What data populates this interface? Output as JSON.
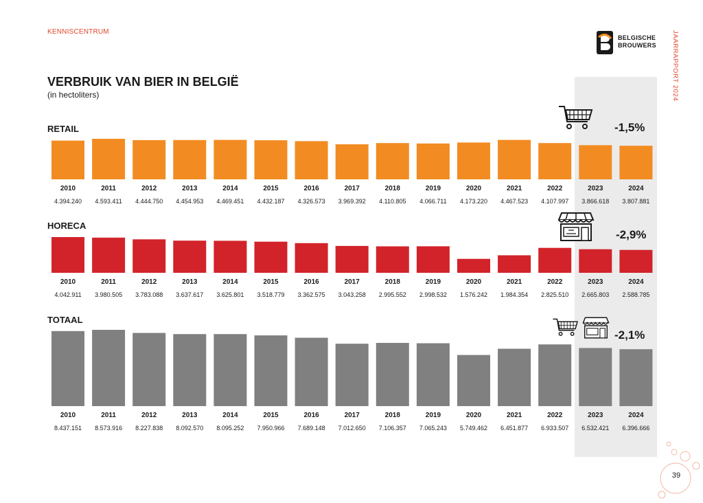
{
  "header": {
    "label": "KENNISCENTRUM",
    "side_label": "JAARRAPPORT 2024",
    "page_number": "39"
  },
  "logo": {
    "line1": "BELGISCHE",
    "line2": "BROUWERS",
    "icon": "brewer-b-logo"
  },
  "title": "VERBRUIK VAN BIER IN BELGIË",
  "subtitle": "(in hectoliters)",
  "colors": {
    "retail": "#f28c22",
    "horeca": "#d2232a",
    "totaal": "#808080",
    "highlight": "#ebebeb",
    "accent": "#e0472c"
  },
  "chart_data": [
    {
      "type": "bar",
      "title": "RETAIL",
      "change": "-1,5%",
      "icon": "shopping-cart-icon",
      "categories": [
        "2010",
        "2011",
        "2012",
        "2013",
        "2014",
        "2015",
        "2016",
        "2017",
        "2018",
        "2019",
        "2020",
        "2021",
        "2022",
        "2023",
        "2024"
      ],
      "value_labels": [
        "4.394.240",
        "4.593.411",
        "4.444.750",
        "4.454.953",
        "4.469.451",
        "4.432.187",
        "4.326.573",
        "3.969.392",
        "4.110.805",
        "4.066.711",
        "4.173.220",
        "4.467.523",
        "4.107.997",
        "3.866.618",
        "3.807.881"
      ],
      "values": [
        4394240,
        4593411,
        4444750,
        4454953,
        4469451,
        4432187,
        4326573,
        3969392,
        4110805,
        4066711,
        4173220,
        4467523,
        4107997,
        3866618,
        3807881
      ],
      "highlighted": [
        "2023",
        "2024"
      ]
    },
    {
      "type": "bar",
      "title": "HORECA",
      "change": "-2,9%",
      "icon": "storefront-icon",
      "categories": [
        "2010",
        "2011",
        "2012",
        "2013",
        "2014",
        "2015",
        "2016",
        "2017",
        "2018",
        "2019",
        "2020",
        "2021",
        "2022",
        "2023",
        "2024"
      ],
      "value_labels": [
        "4.042.911",
        "3.980.505",
        "3.783.088",
        "3.637.617",
        "3.625.801",
        "3.518.779",
        "3.362.575",
        "3.043.258",
        "2.995.552",
        "2.998.532",
        "1.576.242",
        "1.984.354",
        "2.825.510",
        "2.665.803",
        "2.588.785"
      ],
      "values": [
        4042911,
        3980505,
        3783088,
        3637617,
        3625801,
        3518779,
        3362575,
        3043258,
        2995552,
        2998532,
        1576242,
        1984354,
        2825510,
        2665803,
        2588785
      ],
      "highlighted": [
        "2023",
        "2024"
      ]
    },
    {
      "type": "bar",
      "title": "TOTAAL",
      "change": "-2,1%",
      "icon": "cart-and-storefront-icon",
      "categories": [
        "2010",
        "2011",
        "2012",
        "2013",
        "2014",
        "2015",
        "2016",
        "2017",
        "2018",
        "2019",
        "2020",
        "2021",
        "2022",
        "2023",
        "2024"
      ],
      "value_labels": [
        "8.437.151",
        "8.573.916",
        "8.227.838",
        "8.092.570",
        "8.095.252",
        "7.950.966",
        "7.689.148",
        "7.012.650",
        "7.106.357",
        "7.065.243",
        "5.749.462",
        "6.451.877",
        "6.933.507",
        "6.532.421",
        "6.396.666"
      ],
      "values": [
        8437151,
        8573916,
        8227838,
        8092570,
        8095252,
        7950966,
        7689148,
        7012650,
        7106357,
        7065243,
        5749462,
        6451877,
        6933507,
        6532421,
        6396666
      ],
      "highlighted": [
        "2023",
        "2024"
      ]
    }
  ]
}
